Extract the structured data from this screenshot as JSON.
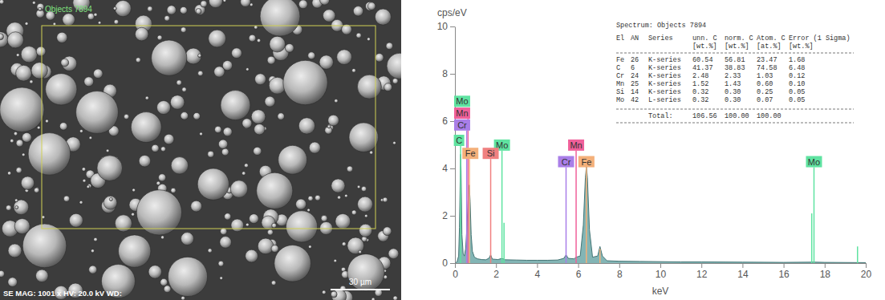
{
  "chart_data": {
    "type": "area",
    "y_label": "cps/eV",
    "x_label": "keV",
    "x": [
      0,
      0.1,
      0.18,
      0.22,
      0.26,
      0.28,
      0.3,
      0.34,
      0.4,
      0.46,
      0.52,
      0.57,
      0.62,
      0.66,
      0.7,
      0.74,
      0.79,
      0.85,
      0.95,
      1.1,
      1.3,
      1.5,
      1.65,
      1.74,
      1.82,
      2.1,
      2.29,
      2.45,
      3,
      3.5,
      4,
      4.5,
      5,
      5.3,
      5.41,
      5.52,
      5.8,
      5.9,
      6.1,
      6.25,
      6.35,
      6.4,
      6.45,
      6.55,
      6.7,
      6.95,
      7.06,
      7.18,
      7.4,
      8,
      9,
      10,
      11,
      12,
      14,
      16,
      17.48,
      18,
      20
    ],
    "values": [
      0,
      0.05,
      0.3,
      1.5,
      3.8,
      4.6,
      3.9,
      1.2,
      0.4,
      0.3,
      0.6,
      1.3,
      2.2,
      3.0,
      3.3,
      2.6,
      1.2,
      0.5,
      0.25,
      0.18,
      0.15,
      0.14,
      0.2,
      0.35,
      0.17,
      0.15,
      0.2,
      0.14,
      0.13,
      0.12,
      0.12,
      0.12,
      0.13,
      0.2,
      0.35,
      0.2,
      0.18,
      0.25,
      0.3,
      1.6,
      3.6,
      4.1,
      3.6,
      1.4,
      0.25,
      0.3,
      0.7,
      0.3,
      0.1,
      0.08,
      0.07,
      0.06,
      0.05,
      0.05,
      0.04,
      0.03,
      0.04,
      0.03,
      0.02
    ],
    "color": "#5a9c9c",
    "xlim": [
      0,
      20
    ],
    "xticks": [
      0,
      2,
      4,
      6,
      8,
      10,
      12,
      14,
      16,
      18,
      20
    ],
    "ylim": [
      0,
      10
    ],
    "yticks": [
      0,
      2,
      4,
      6,
      8,
      10
    ],
    "grid": false,
    "elements": [
      {
        "element": "Mo",
        "color": "#5fe3a1",
        "energies": [
          2.29,
          2.39,
          17.37,
          17.48,
          19.6
        ],
        "heights": [
          4.75,
          1.7,
          2.1,
          4.05,
          0.7
        ],
        "labels": [
          {
            "x": 0.35,
            "y": 6.6
          },
          {
            "x": 2.29,
            "y": 4.75
          },
          {
            "x": 17.48,
            "y": 4.05
          }
        ]
      },
      {
        "element": "Mn",
        "color": "#f0609a",
        "energies": [
          0.637,
          5.9
        ],
        "heights": [
          6.1,
          4.75
        ],
        "labels": [
          {
            "x": 0.35,
            "y": 6.1
          },
          {
            "x": 5.9,
            "y": 4.75
          }
        ]
      },
      {
        "element": "Cr",
        "color": "#a97ee8",
        "energies": [
          0.573,
          5.41
        ],
        "heights": [
          5.6,
          4.05
        ],
        "labels": [
          {
            "x": 0.35,
            "y": 5.6
          },
          {
            "x": 5.41,
            "y": 4.05
          }
        ]
      },
      {
        "element": "C",
        "color": "#5fe3a1",
        "energies": [
          0.277
        ],
        "heights": [
          4.95
        ],
        "labels": [
          {
            "x": 0.2,
            "y": 4.95
          }
        ]
      },
      {
        "element": "Fe",
        "color": "#f4b07a",
        "energies": [
          0.705,
          6.4,
          7.06
        ],
        "heights": [
          4.4,
          4.05,
          0.6
        ],
        "labels": [
          {
            "x": 0.75,
            "y": 4.4
          },
          {
            "x": 6.4,
            "y": 4.05
          }
        ]
      },
      {
        "element": "Si",
        "color": "#f08080",
        "energies": [
          1.74
        ],
        "heights": [
          4.4
        ],
        "labels": [
          {
            "x": 1.74,
            "y": 4.4
          }
        ]
      }
    ],
    "table": {
      "title": "Spectrum: Objects 7894",
      "header": [
        "El",
        "AN",
        "Series",
        "unn. C",
        "norm. C",
        "Atom. C",
        "Error (1 Sigma)"
      ],
      "units": [
        "[wt.%]",
        "[wt.%]",
        "[at.%]",
        "[wt.%]"
      ],
      "rows": [
        [
          "Fe",
          "26",
          "K-series",
          "60.54",
          "56.81",
          "23.47",
          "1.68"
        ],
        [
          "C",
          "6",
          "K-series",
          "41.37",
          "38.83",
          "74.58",
          "6.48"
        ],
        [
          "Cr",
          "24",
          "K-series",
          "2.48",
          "2.33",
          "1.03",
          "0.12"
        ],
        [
          "Mn",
          "25",
          "K-series",
          "1.52",
          "1.43",
          "0.60",
          "0.10"
        ],
        [
          "Si",
          "14",
          "K-series",
          "0.32",
          "0.30",
          "0.25",
          "0.05"
        ],
        [
          "Mo",
          "42",
          "L-series",
          "0.32",
          "0.30",
          "0.07",
          "0.05"
        ]
      ],
      "total": [
        "Total:",
        "106.56",
        "100.00",
        "100.00"
      ]
    }
  },
  "micrograph": {
    "region_label": "Objects 7894",
    "info": "SE MAG: 1001 x HV: 20.0 kV WD:",
    "scale_bar": "30 µm"
  }
}
